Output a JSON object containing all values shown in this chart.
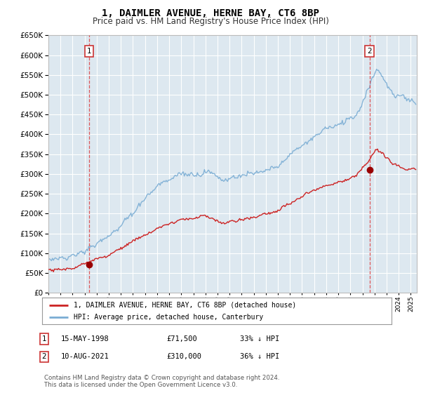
{
  "title": "1, DAIMLER AVENUE, HERNE BAY, CT6 8BP",
  "subtitle": "Price paid vs. HM Land Registry's House Price Index (HPI)",
  "ylim": [
    0,
    650000
  ],
  "yticks": [
    0,
    50000,
    100000,
    150000,
    200000,
    250000,
    300000,
    350000,
    400000,
    450000,
    500000,
    550000,
    600000,
    650000
  ],
  "background_color": "#dde8f0",
  "grid_color": "#ffffff",
  "sale1_date": 1998.37,
  "sale1_price": 71500,
  "sale2_date": 2021.6,
  "sale2_price": 310000,
  "hpi_color": "#7aadd4",
  "price_color": "#cc2222",
  "legend_line1": "1, DAIMLER AVENUE, HERNE BAY, CT6 8BP (detached house)",
  "legend_line2": "HPI: Average price, detached house, Canterbury",
  "note1_label": "1",
  "note1_date": "15-MAY-1998",
  "note1_price": "£71,500",
  "note1_hpi": "33% ↓ HPI",
  "note2_label": "2",
  "note2_date": "10-AUG-2021",
  "note2_price": "£310,000",
  "note2_hpi": "36% ↓ HPI",
  "footer": "Contains HM Land Registry data © Crown copyright and database right 2024.\nThis data is licensed under the Open Government Licence v3.0.",
  "xmin": 1995.0,
  "xmax": 2025.5
}
